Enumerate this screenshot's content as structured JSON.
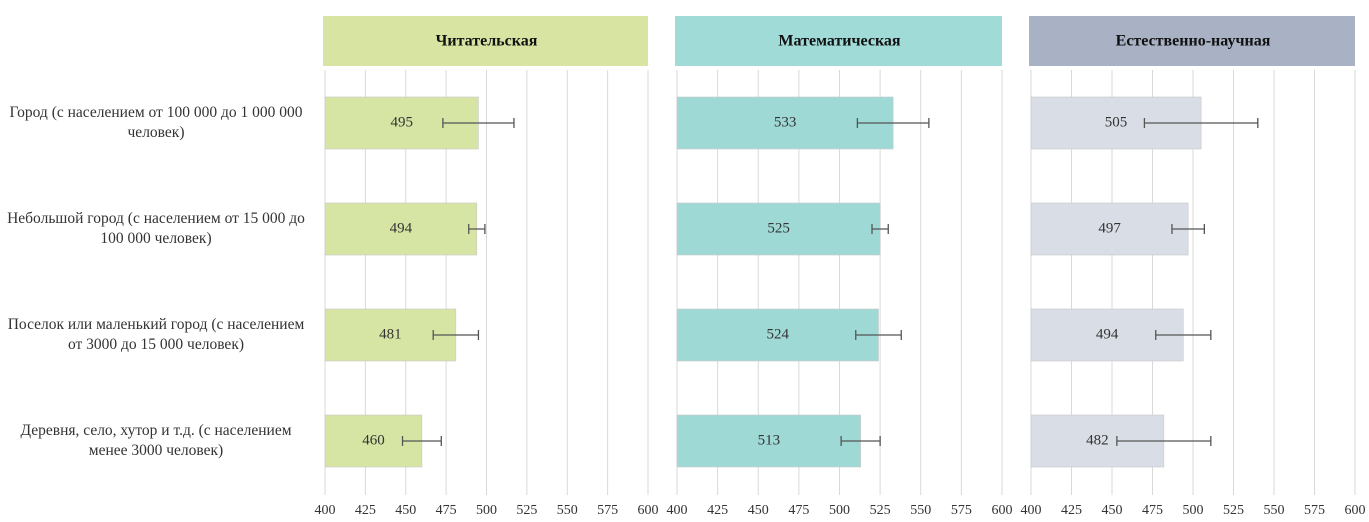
{
  "chart_data": {
    "type": "bar",
    "orientation": "horizontal",
    "categories": [
      "Город (с населением от 100 000 до 1 000 000 человек)",
      "Небольшой город (с населением от 15 000 до 100 000 человек)",
      "Поселок или маленький город (с населением от 3000 до 15 000 человек)",
      "Деревня, село, хутор и т.д. (с населением менее 3000 человек)"
    ],
    "xlim": [
      400,
      600
    ],
    "xticks": [
      400,
      425,
      450,
      475,
      500,
      525,
      550,
      575,
      600
    ],
    "grid": true,
    "series": [
      {
        "name": "Читательская",
        "color": "#d6e4a4",
        "header_color": "#d7e4a2",
        "values": [
          495,
          494,
          481,
          460
        ],
        "errors": [
          22,
          5,
          14,
          12
        ]
      },
      {
        "name": "Математическая",
        "color": "#9fd9d6",
        "header_color": "#a1dbd8",
        "values": [
          533,
          525,
          524,
          513
        ],
        "errors": [
          22,
          5,
          14,
          12
        ]
      },
      {
        "name": "Естественно-научная",
        "color": "#d9dde6",
        "header_color": "#a8b2c4",
        "values": [
          505,
          497,
          494,
          482
        ],
        "errors": [
          35,
          10,
          17,
          29
        ]
      }
    ]
  }
}
